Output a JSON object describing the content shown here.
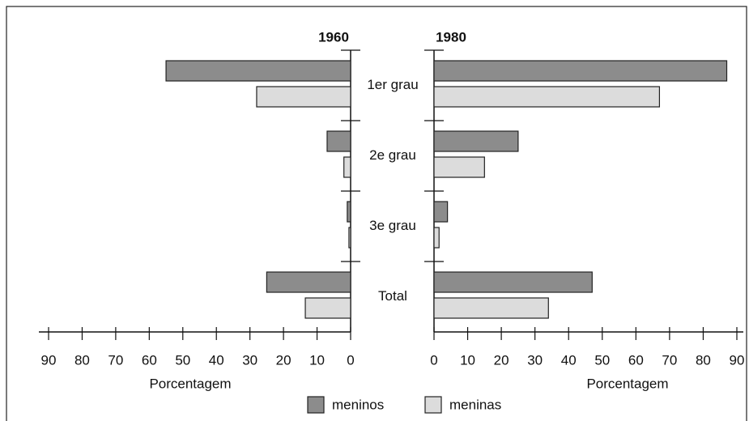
{
  "chart_data": {
    "type": "bar",
    "categories": [
      "1er grau",
      "2e grau",
      "3e grau",
      "Total"
    ],
    "series": [
      {
        "name": "meninos",
        "color": "#8c8c8c"
      },
      {
        "name": "meninas",
        "color": "#dcdcdc"
      }
    ],
    "panels": [
      {
        "title": "1960",
        "xlabel": "Porcentagem",
        "x_inverted": true,
        "xlim": [
          0,
          90
        ],
        "xticks": [
          0,
          10,
          20,
          30,
          40,
          50,
          60,
          70,
          80,
          90
        ],
        "series": [
          {
            "values": [
              55,
              7,
              1,
              25
            ]
          },
          {
            "values": [
              28,
              2,
              0.5,
              13.5
            ]
          }
        ]
      },
      {
        "title": "1980",
        "xlabel": "Porcentagem",
        "x_inverted": false,
        "xlim": [
          0,
          90
        ],
        "xticks": [
          0,
          10,
          20,
          30,
          40,
          50,
          60,
          70,
          80,
          90
        ],
        "series": [
          {
            "values": [
              87,
              25,
              4,
              47
            ]
          },
          {
            "values": [
              67,
              15,
              1.5,
              34
            ]
          }
        ]
      }
    ]
  }
}
